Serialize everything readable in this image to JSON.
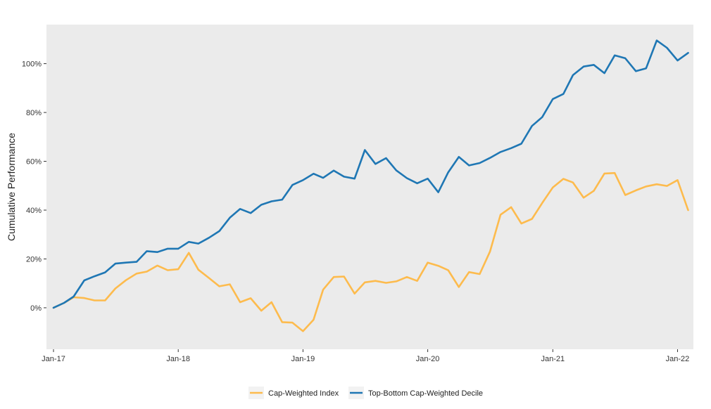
{
  "chart_data": {
    "type": "line",
    "title": "",
    "xlabel": "",
    "ylabel": "Cumulative Performance",
    "x_ticks": [
      "Jan-17",
      "Jan-18",
      "Jan-19",
      "Jan-20",
      "Jan-21",
      "Jan-22"
    ],
    "y_ticks": [
      "0%",
      "20%",
      "40%",
      "60%",
      "80%",
      "100%"
    ],
    "y_tick_values": [
      0,
      20,
      40,
      60,
      80,
      100
    ],
    "xlim": [
      "2017-01",
      "2022-02"
    ],
    "ylim": [
      -17,
      116
    ],
    "grid": false,
    "legend_position": "bottom",
    "background": "#ebebeb",
    "x": [
      "2017-01",
      "2017-02",
      "2017-03",
      "2017-04",
      "2017-05",
      "2017-06",
      "2017-07",
      "2017-08",
      "2017-09",
      "2017-10",
      "2017-11",
      "2017-12",
      "2018-01",
      "2018-02",
      "2018-03",
      "2018-04",
      "2018-05",
      "2018-06",
      "2018-07",
      "2018-08",
      "2018-09",
      "2018-10",
      "2018-11",
      "2018-12",
      "2019-01",
      "2019-02",
      "2019-03",
      "2019-04",
      "2019-05",
      "2019-06",
      "2019-07",
      "2019-08",
      "2019-09",
      "2019-10",
      "2019-11",
      "2019-12",
      "2020-01",
      "2020-02",
      "2020-03",
      "2020-04",
      "2020-05",
      "2020-06",
      "2020-07",
      "2020-08",
      "2020-09",
      "2020-10",
      "2020-11",
      "2020-12",
      "2021-01",
      "2021-02",
      "2021-03",
      "2021-04",
      "2021-05",
      "2021-06",
      "2021-07",
      "2021-08",
      "2021-09",
      "2021-10",
      "2021-11",
      "2021-12",
      "2022-01",
      "2022-02"
    ],
    "series": [
      {
        "name": "Cap-Weighted Index",
        "color": "#fdbb4d",
        "values": [
          0,
          2,
          4.3,
          4,
          3,
          3,
          7.9,
          11.3,
          14,
          14.8,
          17.3,
          15.4,
          15.8,
          22.5,
          15.6,
          12.2,
          8.8,
          9.6,
          2.3,
          3.9,
          -1.2,
          2.3,
          -5.9,
          -6.1,
          -9.6,
          -4.9,
          7.4,
          12.6,
          12.8,
          5.8,
          10.4,
          11,
          10.2,
          10.8,
          12.6,
          11,
          18.5,
          17.2,
          15.4,
          8.5,
          14.6,
          13.8,
          23,
          38.1,
          41.2,
          34.5,
          36.4,
          42.9,
          49.3,
          52.8,
          51.3,
          45.1,
          47.9,
          55,
          55.2,
          46.2,
          48.1,
          49.7,
          50.6,
          49.9,
          52.3,
          40
        ]
      },
      {
        "name": "Top-Bottom Cap-Weighted Decile",
        "color": "#1f77b4",
        "values": [
          0,
          2,
          4.6,
          11.2,
          12.9,
          14.5,
          18.1,
          18.5,
          18.8,
          23.2,
          22.8,
          24.2,
          24.2,
          27,
          26.3,
          28.7,
          31.4,
          36.9,
          40.5,
          38.8,
          42.2,
          43.6,
          44.3,
          50.3,
          52.3,
          54.9,
          53.2,
          56.2,
          53.7,
          52.9,
          64.6,
          58.9,
          61.3,
          56.3,
          53.1,
          51,
          52.9,
          47.3,
          55.5,
          61.8,
          58.3,
          59.3,
          61.4,
          63.8,
          65.4,
          67.2,
          74.5,
          78.1,
          85.5,
          87.6,
          95.3,
          98.8,
          99.5,
          96.1,
          103.4,
          102.2,
          96.9,
          98.1,
          109.5,
          106.5,
          101.3,
          104.4
        ]
      }
    ]
  }
}
